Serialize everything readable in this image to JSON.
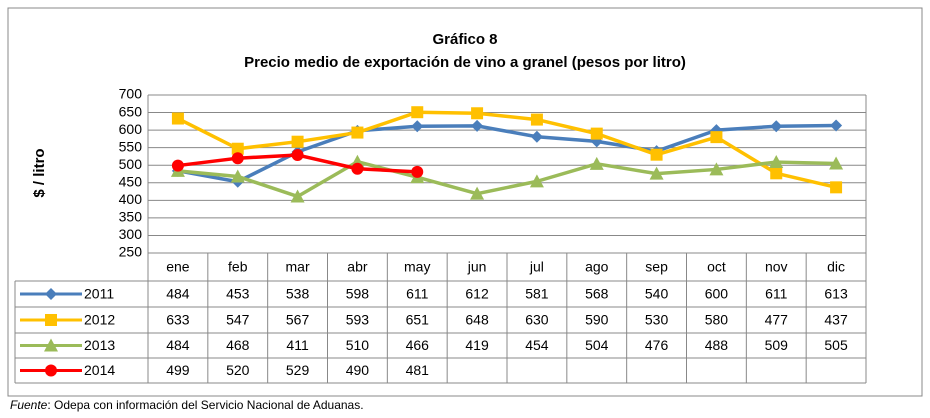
{
  "chart_data": {
    "type": "line",
    "title": "Gráfico 8",
    "subtitle": "Precio medio de exportación de vino a granel  (pesos por litro)",
    "y_label": "$ / litro",
    "categories": [
      "ene",
      "feb",
      "mar",
      "abr",
      "may",
      "jun",
      "jul",
      "ago",
      "sep",
      "oct",
      "nov",
      "dic"
    ],
    "series": [
      {
        "name": "2011",
        "color": "#4a7ebb",
        "marker": "diamond",
        "values": [
          484,
          453,
          538,
          598,
          611,
          612,
          581,
          568,
          540,
          600,
          611,
          613
        ]
      },
      {
        "name": "2012",
        "color": "#ffc000",
        "marker": "square",
        "values": [
          633,
          547,
          567,
          593,
          651,
          648,
          630,
          590,
          530,
          580,
          477,
          437
        ]
      },
      {
        "name": "2013",
        "color": "#9bbb59",
        "marker": "triangle",
        "values": [
          484,
          468,
          411,
          510,
          466,
          419,
          454,
          504,
          476,
          488,
          509,
          505
        ]
      },
      {
        "name": "2014",
        "color": "#ff0000",
        "marker": "circle",
        "values": [
          499,
          520,
          529,
          490,
          481,
          null,
          null,
          null,
          null,
          null,
          null,
          null
        ]
      }
    ],
    "ylim": [
      250,
      700
    ],
    "yticks": [
      250,
      300,
      350,
      400,
      450,
      500,
      550,
      600,
      650,
      700
    ],
    "grid": true,
    "source": {
      "label": "Fuente",
      "text": ": Odepa con información del Servicio Nacional de Aduanas."
    }
  }
}
